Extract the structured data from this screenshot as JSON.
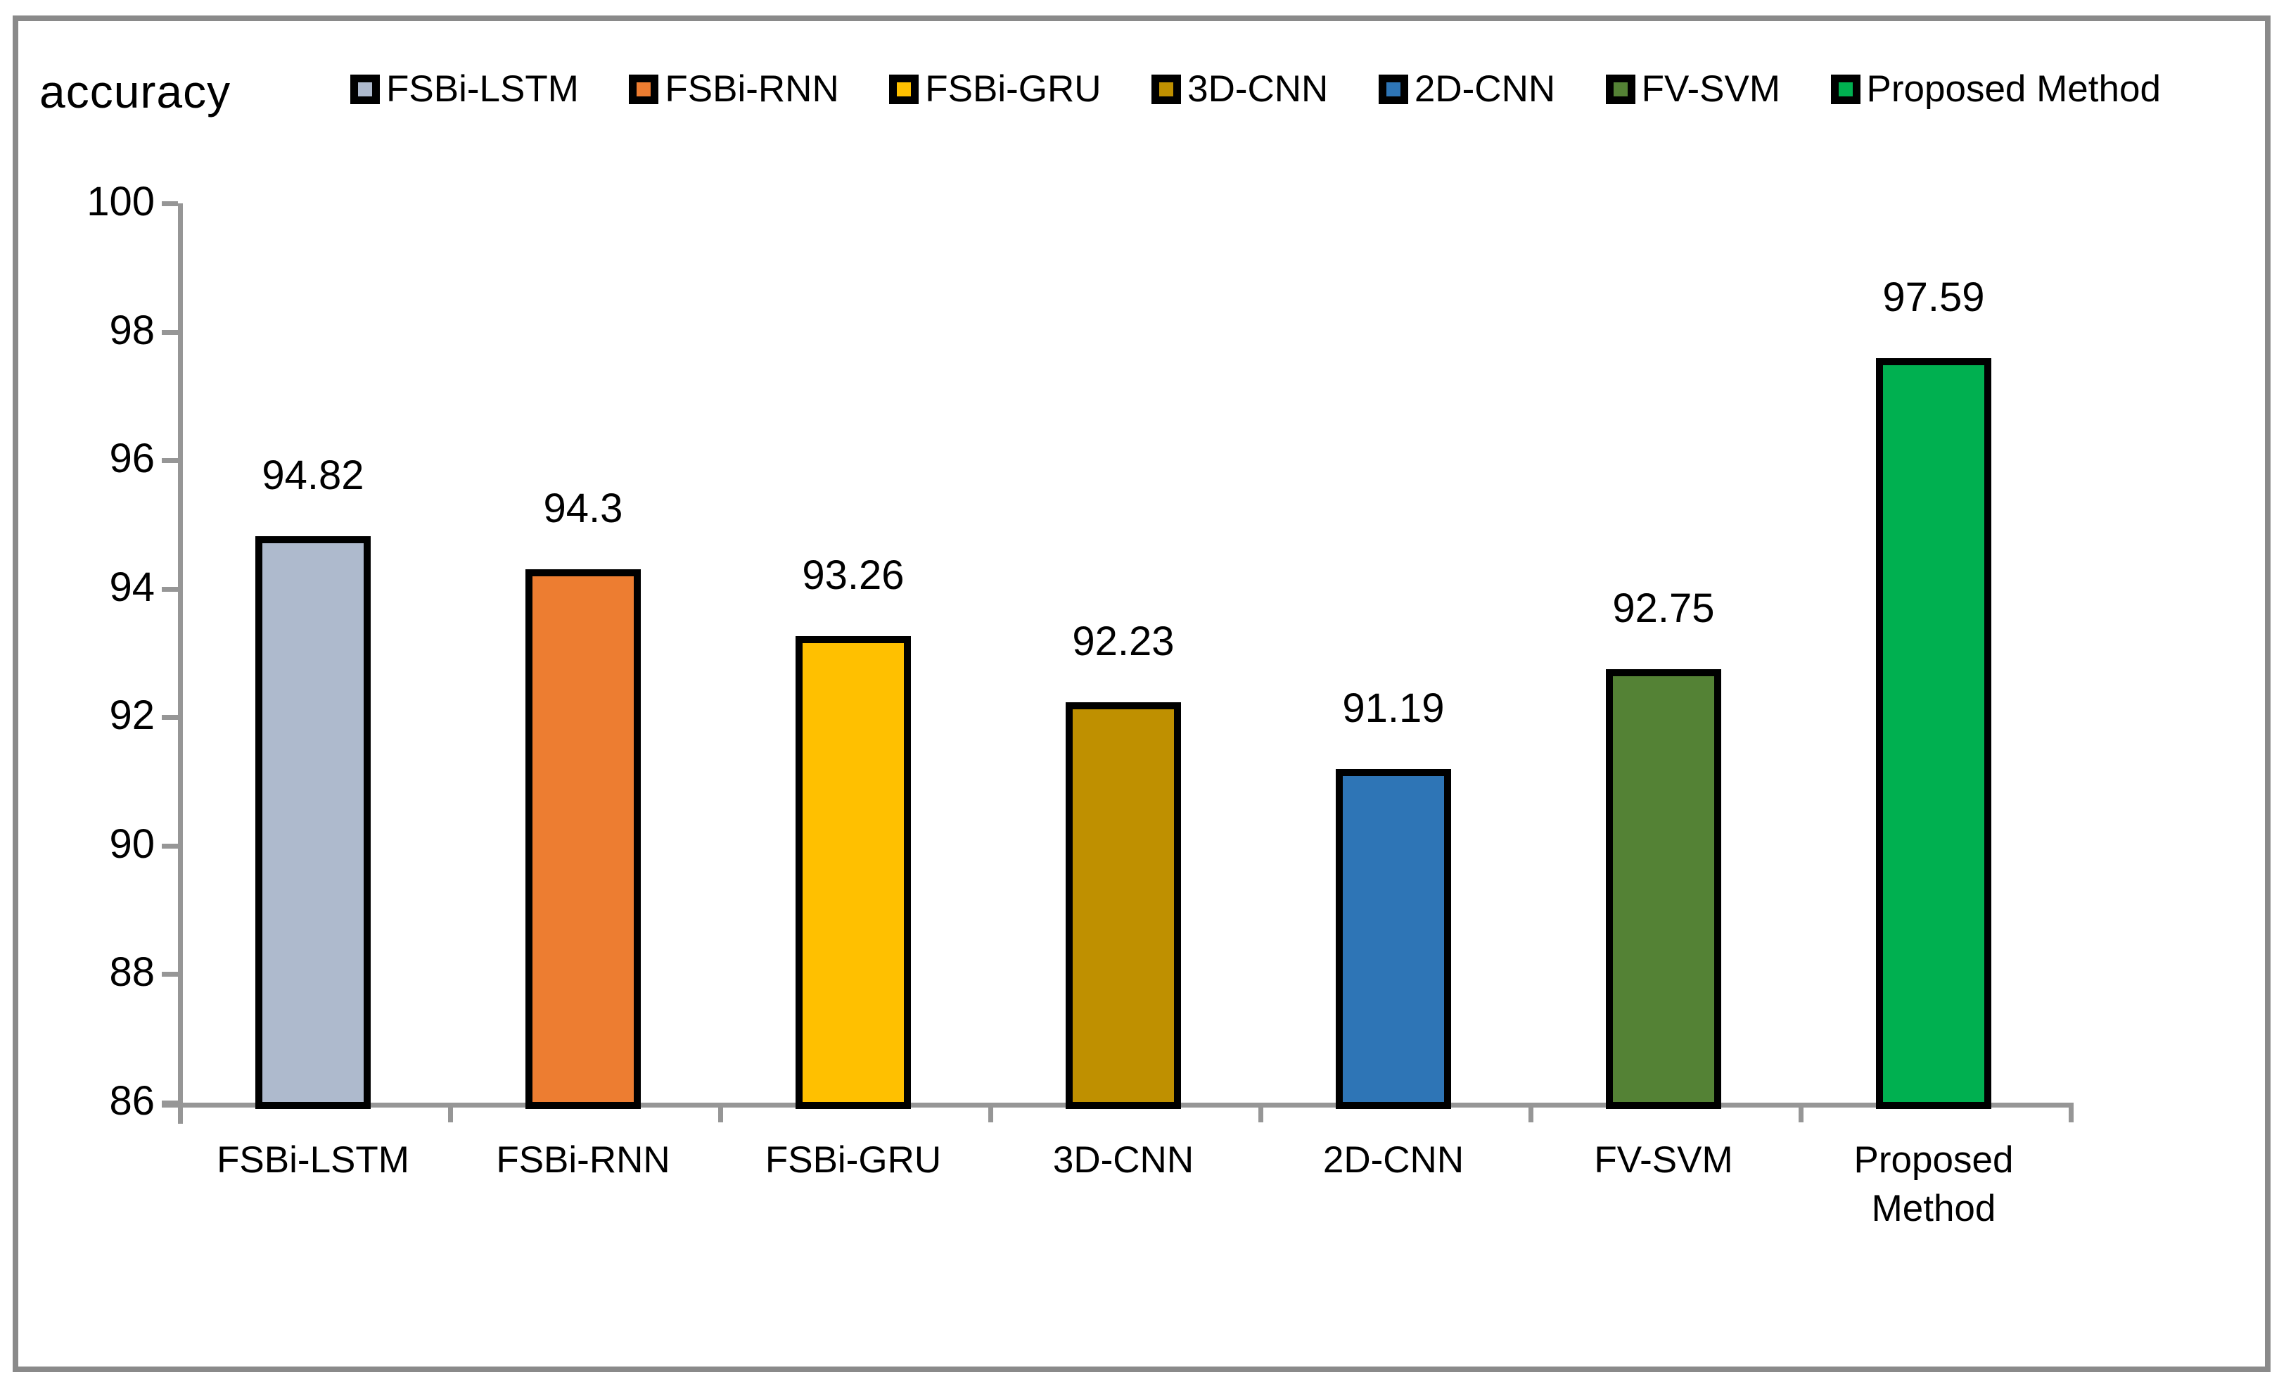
{
  "chart_data": {
    "type": "bar",
    "title": "accuracy",
    "categories": [
      "FSBi-LSTM",
      "FSBi-RNN",
      "FSBi-GRU",
      "3D-CNN",
      "2D-CNN",
      "FV-SVM",
      "Proposed Method"
    ],
    "values": [
      94.82,
      94.3,
      93.26,
      92.23,
      91.19,
      92.75,
      97.59
    ],
    "value_labels": [
      "94.82",
      "94.3",
      "93.26",
      "92.23",
      "91.19",
      "92.75",
      "97.59"
    ],
    "bar_colors": [
      "#AEBACD",
      "#ED7D31",
      "#FFC000",
      "#BF9000",
      "#2E75B6",
      "#548235",
      "#00B050"
    ],
    "ylim": [
      86,
      100
    ],
    "yticks": [
      86,
      88,
      90,
      92,
      94,
      96,
      98,
      100
    ],
    "grid": false,
    "legend_position": "top",
    "legend": [
      {
        "label": "FSBi-LSTM",
        "color": "#AEBACD"
      },
      {
        "label": "FSBi-RNN",
        "color": "#ED7D31"
      },
      {
        "label": "FSBi-GRU",
        "color": "#FFC000"
      },
      {
        "label": "3D-CNN",
        "color": "#BF9000"
      },
      {
        "label": "2D-CNN",
        "color": "#2E75B6"
      },
      {
        "label": "FV-SVM",
        "color": "#548235"
      },
      {
        "label": "Proposed Method",
        "color": "#00B050"
      }
    ],
    "bar_border_color": "#000000",
    "axis_color": "#969696",
    "frame_border_color": "#8A8A8A",
    "background_color": "#FFFFFF",
    "text_color": "#000000"
  }
}
